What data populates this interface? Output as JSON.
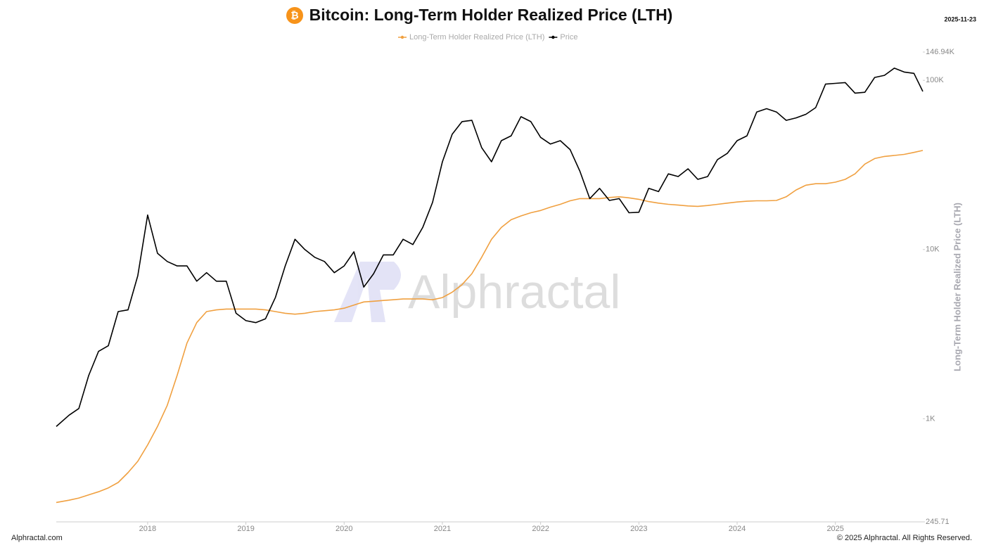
{
  "chart_data": {
    "type": "line",
    "title": "Bitcoin: Long-Term Holder Realized Price (LTH)",
    "date": "2025-11-23",
    "y_label": "Long-Term Holder Realized Price (LTH)",
    "watermark": "Alphractal",
    "footer_left": "Alphractal.com",
    "footer_right": "© 2025 Alphractal. All Rights Reserved.",
    "log_y": true,
    "x": [
      2017.07,
      2017.2,
      2017.3,
      2017.4,
      2017.5,
      2017.6,
      2017.7,
      2017.8,
      2017.9,
      2018.0,
      2018.1,
      2018.2,
      2018.3,
      2018.4,
      2018.5,
      2018.6,
      2018.7,
      2018.8,
      2018.9,
      2019.0,
      2019.1,
      2019.2,
      2019.3,
      2019.4,
      2019.5,
      2019.6,
      2019.7,
      2019.8,
      2019.9,
      2020.0,
      2020.1,
      2020.2,
      2020.3,
      2020.4,
      2020.5,
      2020.6,
      2020.7,
      2020.8,
      2020.9,
      2021.0,
      2021.1,
      2021.2,
      2021.3,
      2021.4,
      2021.5,
      2021.6,
      2021.7,
      2021.8,
      2021.9,
      2022.0,
      2022.1,
      2022.2,
      2022.3,
      2022.4,
      2022.5,
      2022.6,
      2022.7,
      2022.8,
      2022.9,
      2023.0,
      2023.1,
      2023.2,
      2023.3,
      2023.4,
      2023.5,
      2023.6,
      2023.7,
      2023.8,
      2023.9,
      2024.0,
      2024.1,
      2024.2,
      2024.3,
      2024.4,
      2024.5,
      2024.6,
      2024.7,
      2024.8,
      2024.9,
      2025.0,
      2025.1,
      2025.2,
      2025.3,
      2025.4,
      2025.5,
      2025.6,
      2025.7,
      2025.8,
      2025.89
    ],
    "xlim": [
      2017.07,
      2025.89
    ],
    "xticks": [
      2018,
      2019,
      2020,
      2021,
      2022,
      2023,
      2024,
      2025
    ],
    "ylim": [
      245.71,
      146940
    ],
    "yticks": [
      245.71,
      {
        "value": 1000,
        "label": "1K"
      },
      {
        "value": 10000,
        "label": "10K"
      },
      {
        "value": 100000,
        "label": "100K"
      },
      {
        "value": 146940,
        "label": "146.94K"
      }
    ],
    "series": [
      {
        "name": "Long-Term Holder Realized Price (LTH)",
        "color": "#f0a040",
        "values": [
          320,
          330,
          340,
          355,
          370,
          390,
          420,
          480,
          560,
          700,
          900,
          1200,
          1800,
          2800,
          3700,
          4300,
          4400,
          4450,
          4450,
          4450,
          4450,
          4400,
          4300,
          4200,
          4150,
          4200,
          4300,
          4350,
          4400,
          4500,
          4700,
          4900,
          4950,
          5000,
          5050,
          5100,
          5100,
          5100,
          5050,
          5200,
          5600,
          6200,
          7200,
          9000,
          11500,
          13500,
          15000,
          15800,
          16500,
          17000,
          17800,
          18500,
          19400,
          20000,
          20000,
          20000,
          20300,
          20500,
          20200,
          19800,
          19200,
          18800,
          18500,
          18300,
          18100,
          18000,
          18200,
          18500,
          18800,
          19100,
          19300,
          19400,
          19400,
          19500,
          20500,
          22500,
          24000,
          24500,
          24500,
          25000,
          26000,
          28000,
          32000,
          34500,
          35500,
          36000,
          36500,
          37500,
          38500
        ]
      },
      {
        "name": "Price",
        "color": "#000000",
        "values": [
          900,
          1050,
          1150,
          1800,
          2500,
          2700,
          4300,
          4400,
          7000,
          16000,
          9500,
          8500,
          8000,
          8000,
          6500,
          7300,
          6500,
          6500,
          4200,
          3800,
          3700,
          3900,
          5200,
          8000,
          11500,
          10000,
          9000,
          8500,
          7300,
          8000,
          9700,
          6000,
          7200,
          9300,
          9300,
          11500,
          10700,
          13500,
          19000,
          33000,
          48000,
          57000,
          58000,
          40000,
          33000,
          44000,
          47000,
          61000,
          57000,
          46000,
          42000,
          44000,
          39000,
          29000,
          20000,
          23000,
          19500,
          20000,
          16500,
          16600,
          23000,
          22000,
          28000,
          27000,
          30000,
          26000,
          27000,
          34000,
          37000,
          44000,
          47000,
          65000,
          68000,
          65000,
          58000,
          60000,
          63000,
          69000,
          95000,
          96000,
          97000,
          84000,
          85000,
          104000,
          107000,
          118000,
          112000,
          110000,
          86000
        ]
      }
    ]
  }
}
